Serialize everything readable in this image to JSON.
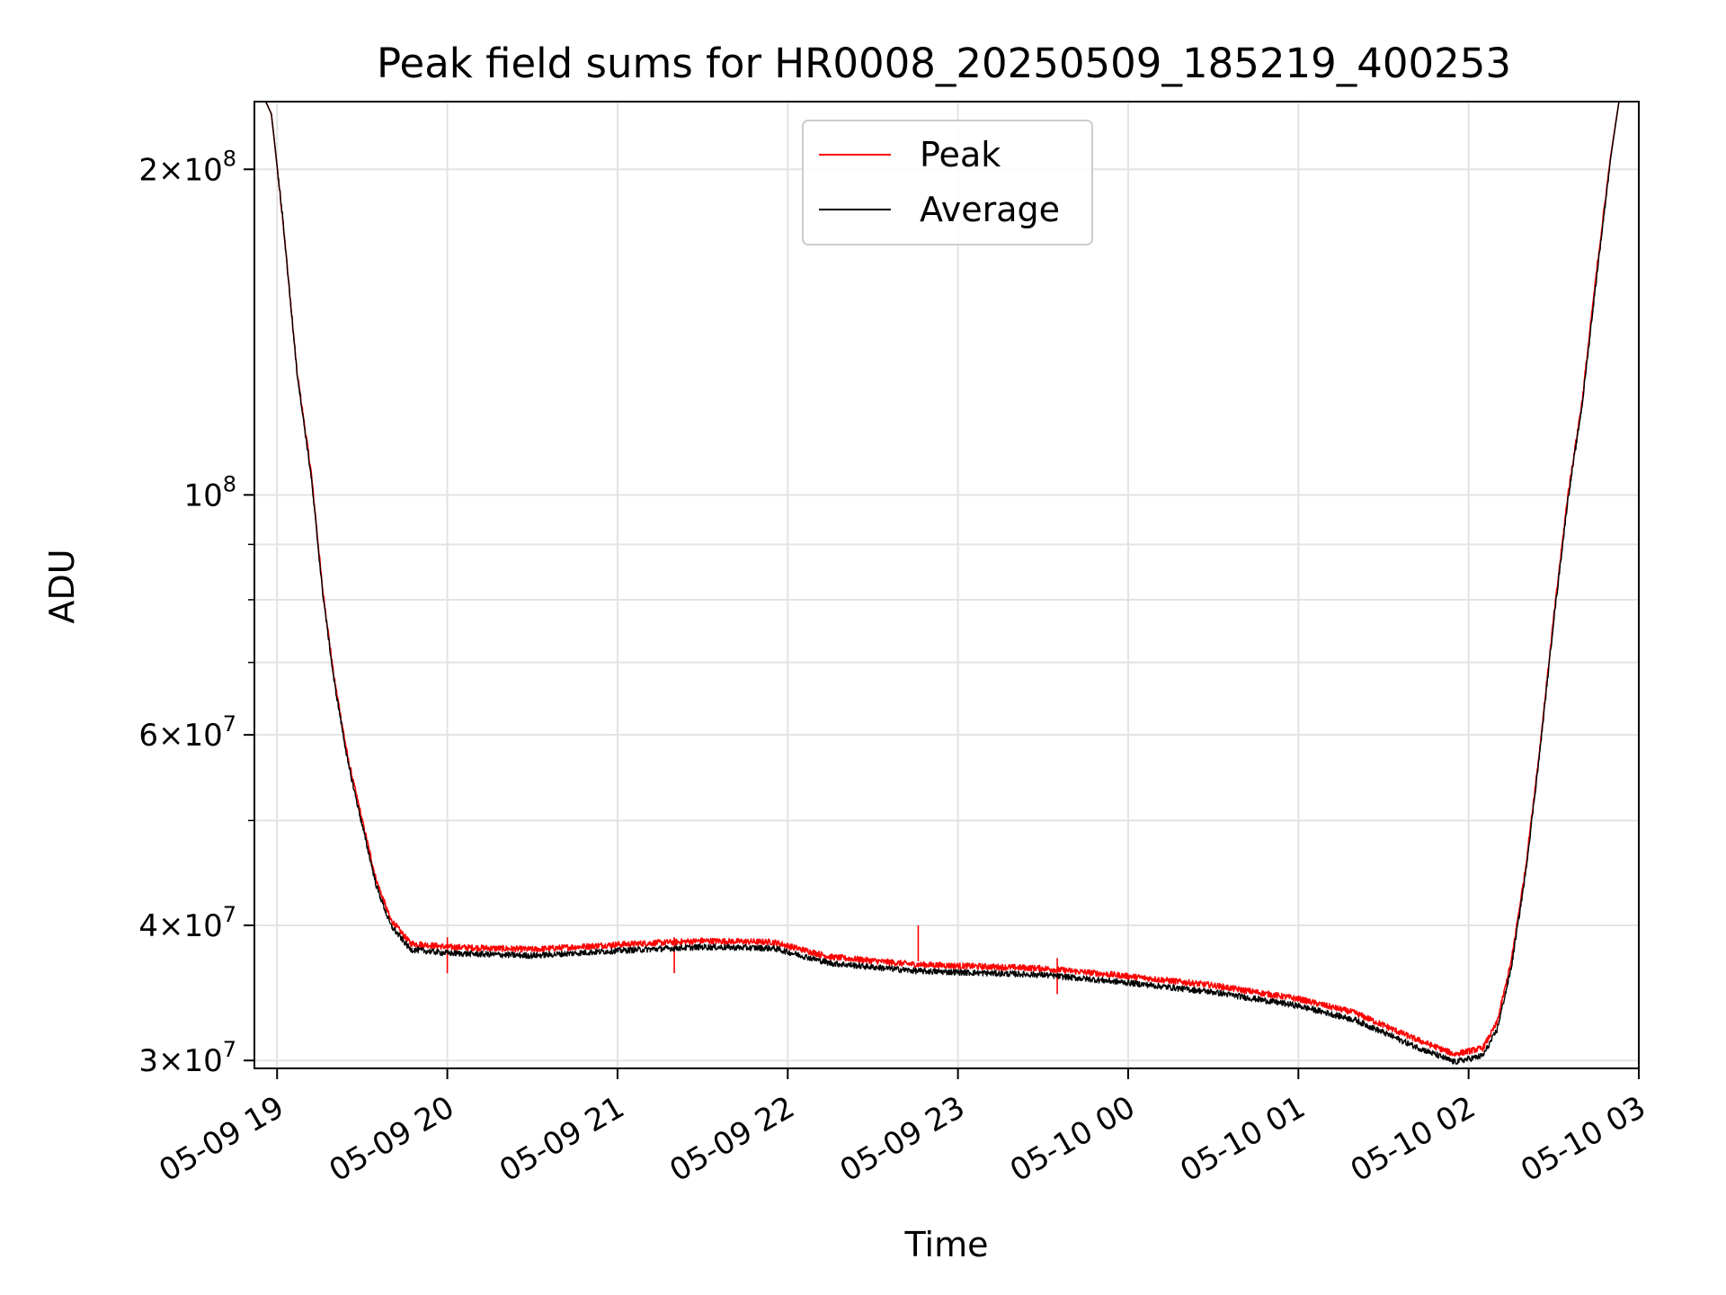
{
  "chart_data": {
    "type": "line",
    "title": "Peak field sums for HR0008_20250509_185219_400253",
    "xlabel": "Time",
    "ylabel": "ADU",
    "yscale": "log",
    "xlim": [
      "2025-05-09 18:52",
      "2025-05-10 03:00"
    ],
    "ylim": [
      29500000,
      231000000
    ],
    "grid": true,
    "legend_position": "upper-center",
    "x_ticks": [
      {
        "t": "2025-05-09 19:00",
        "label": "05-09 19"
      },
      {
        "t": "2025-05-09 20:00",
        "label": "05-09 20"
      },
      {
        "t": "2025-05-09 21:00",
        "label": "05-09 21"
      },
      {
        "t": "2025-05-09 22:00",
        "label": "05-09 22"
      },
      {
        "t": "2025-05-09 23:00",
        "label": "05-09 23"
      },
      {
        "t": "2025-05-10 00:00",
        "label": "05-10 00"
      },
      {
        "t": "2025-05-10 01:00",
        "label": "05-10 01"
      },
      {
        "t": "2025-05-10 02:00",
        "label": "05-10 02"
      },
      {
        "t": "2025-05-10 03:00",
        "label": "05-10 03"
      }
    ],
    "y_major_ticks": [
      {
        "v": 30000000,
        "mant": "3",
        "exp": "7"
      },
      {
        "v": 40000000,
        "mant": "4",
        "exp": "7"
      },
      {
        "v": 60000000,
        "mant": "6",
        "exp": "7"
      },
      {
        "v": 100000000,
        "mant": "",
        "exp": "8"
      },
      {
        "v": 200000000,
        "mant": "2",
        "exp": "8"
      }
    ],
    "y_minor_ticks": [
      50000000,
      70000000,
      80000000,
      90000000
    ],
    "series": [
      {
        "name": "Peak",
        "color": "#ff0000",
        "points": [
          [
            "2025-05-09 18:52",
            231000000
          ],
          [
            "2025-05-09 18:56",
            231000000
          ],
          [
            "2025-05-09 18:58",
            225000000
          ],
          [
            "2025-05-09 19:02",
            180000000
          ],
          [
            "2025-05-09 19:07",
            130000000
          ],
          [
            "2025-05-09 19:12",
            105000000
          ],
          [
            "2025-05-09 19:16",
            82000000
          ],
          [
            "2025-05-09 19:20",
            68000000
          ],
          [
            "2025-05-09 19:25",
            57000000
          ],
          [
            "2025-05-09 19:30",
            50000000
          ],
          [
            "2025-05-09 19:35",
            44000000
          ],
          [
            "2025-05-09 19:40",
            40500000
          ],
          [
            "2025-05-09 19:47",
            38500000
          ],
          [
            "2025-05-09 20:00",
            38200000
          ],
          [
            "2025-05-09 20:30",
            38000000
          ],
          [
            "2025-05-09 21:00",
            38400000
          ],
          [
            "2025-05-09 21:30",
            38700000
          ],
          [
            "2025-05-09 21:55",
            38600000
          ],
          [
            "2025-05-09 22:15",
            37400000
          ],
          [
            "2025-05-09 22:45",
            36800000
          ],
          [
            "2025-05-09 23:30",
            36500000
          ],
          [
            "2025-05-10 00:00",
            35900000
          ],
          [
            "2025-05-10 00:30",
            35200000
          ],
          [
            "2025-05-10 01:00",
            34200000
          ],
          [
            "2025-05-10 01:20",
            33200000
          ],
          [
            "2025-05-10 01:40",
            31500000
          ],
          [
            "2025-05-10 01:55",
            30400000
          ],
          [
            "2025-05-10 02:05",
            30800000
          ],
          [
            "2025-05-10 02:10",
            32500000
          ],
          [
            "2025-05-10 02:15",
            37000000
          ],
          [
            "2025-05-10 02:20",
            45000000
          ],
          [
            "2025-05-10 02:25",
            58000000
          ],
          [
            "2025-05-10 02:30",
            77000000
          ],
          [
            "2025-05-10 02:35",
            100000000
          ],
          [
            "2025-05-10 02:40",
            122000000
          ],
          [
            "2025-05-10 02:45",
            160000000
          ],
          [
            "2025-05-10 02:50",
            205000000
          ],
          [
            "2025-05-10 02:53",
            231000000
          ],
          [
            "2025-05-10 03:00",
            231000000
          ]
        ],
        "annotations": [
          {
            "t": "2025-05-09 20:00",
            "v": 39000000
          },
          {
            "t": "2025-05-09 21:20",
            "v": 39000000
          },
          {
            "t": "2025-05-09 22:46",
            "v": 40000000
          },
          {
            "t": "2025-05-09 23:35",
            "v": 37300000
          }
        ]
      },
      {
        "name": "Average",
        "color": "#000000",
        "points": [
          [
            "2025-05-09 18:52",
            231000000
          ],
          [
            "2025-05-09 18:56",
            231000000
          ],
          [
            "2025-05-09 18:58",
            225000000
          ],
          [
            "2025-05-09 19:02",
            180000000
          ],
          [
            "2025-05-09 19:07",
            130000000
          ],
          [
            "2025-05-09 19:12",
            104000000
          ],
          [
            "2025-05-09 19:16",
            81500000
          ],
          [
            "2025-05-09 19:20",
            67500000
          ],
          [
            "2025-05-09 19:25",
            56500000
          ],
          [
            "2025-05-09 19:30",
            49500000
          ],
          [
            "2025-05-09 19:35",
            43500000
          ],
          [
            "2025-05-09 19:40",
            40000000
          ],
          [
            "2025-05-09 19:47",
            38000000
          ],
          [
            "2025-05-09 20:00",
            37700000
          ],
          [
            "2025-05-09 20:30",
            37500000
          ],
          [
            "2025-05-09 21:00",
            37900000
          ],
          [
            "2025-05-09 21:30",
            38200000
          ],
          [
            "2025-05-09 21:55",
            38100000
          ],
          [
            "2025-05-09 22:15",
            36900000
          ],
          [
            "2025-05-09 22:45",
            36300000
          ],
          [
            "2025-05-09 23:30",
            36000000
          ],
          [
            "2025-05-10 00:00",
            35400000
          ],
          [
            "2025-05-10 00:30",
            34700000
          ],
          [
            "2025-05-10 01:00",
            33700000
          ],
          [
            "2025-05-10 01:20",
            32700000
          ],
          [
            "2025-05-10 01:40",
            31000000
          ],
          [
            "2025-05-10 01:55",
            29900000
          ],
          [
            "2025-05-10 02:05",
            30300000
          ],
          [
            "2025-05-10 02:10",
            32000000
          ],
          [
            "2025-05-10 02:15",
            36500000
          ],
          [
            "2025-05-10 02:20",
            44500000
          ],
          [
            "2025-05-10 02:25",
            57500000
          ],
          [
            "2025-05-10 02:30",
            76500000
          ],
          [
            "2025-05-10 02:35",
            99000000
          ],
          [
            "2025-05-10 02:40",
            121000000
          ],
          [
            "2025-05-10 02:45",
            158000000
          ],
          [
            "2025-05-10 02:50",
            204000000
          ],
          [
            "2025-05-10 02:53",
            231000000
          ],
          [
            "2025-05-10 03:00",
            231000000
          ]
        ]
      }
    ]
  }
}
